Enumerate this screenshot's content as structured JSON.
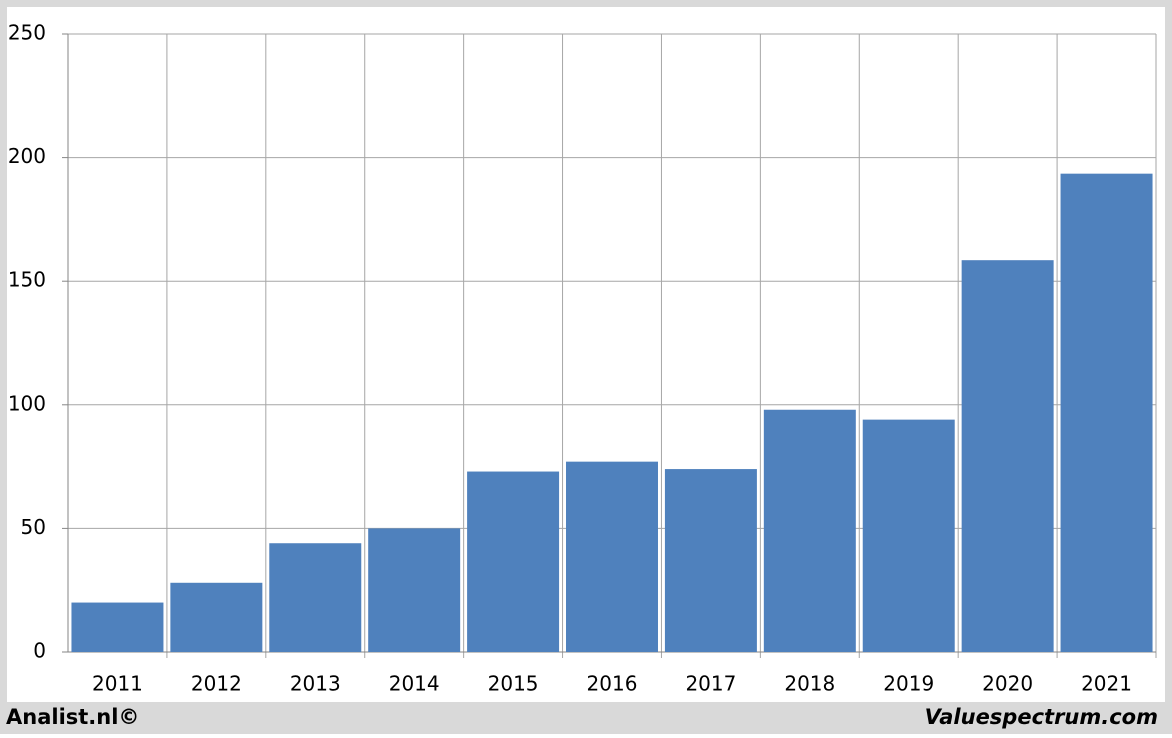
{
  "chart_data": {
    "type": "bar",
    "categories": [
      "2011",
      "2012",
      "2013",
      "2014",
      "2015",
      "2016",
      "2017",
      "2018",
      "2019",
      "2020",
      "2021"
    ],
    "values": [
      20,
      28,
      44,
      50,
      73,
      77,
      74,
      98,
      94,
      158.5,
      193.5
    ],
    "color": "#4f81bd",
    "ylim": [
      0,
      250
    ],
    "yticks": [
      0,
      50,
      100,
      150,
      200,
      250
    ],
    "grid": true,
    "footer_left": "Analist.nl©",
    "footer_right": "Valuespectrum.com"
  }
}
